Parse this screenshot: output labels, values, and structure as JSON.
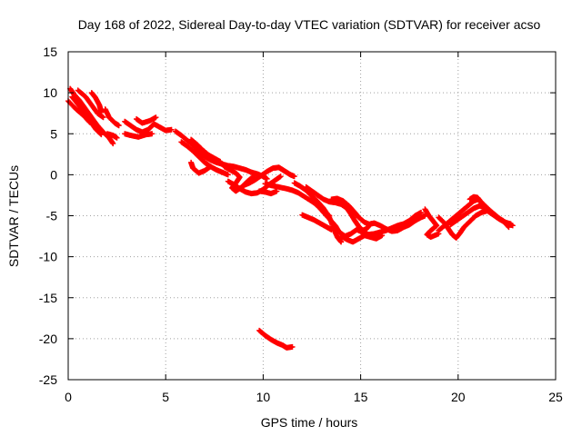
{
  "chart_data": {
    "type": "scatter",
    "title": "Day 168 of 2022, Sidereal Day-to-day VTEC variation (SDTVAR) for receiver acso",
    "xlabel": "GPS time / hours",
    "ylabel": "SDTVAR / TECUs",
    "xlim": [
      0,
      25
    ],
    "ylim": [
      -25,
      15
    ],
    "xticks": [
      "0",
      "5",
      "10",
      "15",
      "20",
      "25"
    ],
    "yticks": [
      "-25",
      "-20",
      "-15",
      "-10",
      "-5",
      "0",
      "5",
      "10",
      "15"
    ],
    "grid": true,
    "marker": "plus",
    "series": [
      {
        "name": "SDTVAR",
        "color": "#ff0000",
        "tracks": [
          [
            [
              0.1,
              10.5
            ],
            [
              0.3,
              9.8
            ],
            [
              0.6,
              9.0
            ],
            [
              0.9,
              8.0
            ],
            [
              1.2,
              7.0
            ],
            [
              1.5,
              6.0
            ],
            [
              1.8,
              5.2
            ],
            [
              2.1,
              4.5
            ],
            [
              2.3,
              3.8
            ]
          ],
          [
            [
              0.2,
              9.5
            ],
            [
              0.5,
              8.6
            ],
            [
              0.8,
              7.6
            ],
            [
              1.1,
              6.6
            ],
            [
              1.4,
              5.6
            ],
            [
              1.7,
              4.9
            ]
          ],
          [
            [
              0.0,
              9.0
            ],
            [
              0.4,
              8.0
            ],
            [
              0.8,
              7.2
            ],
            [
              1.1,
              6.4
            ]
          ],
          [
            [
              0.5,
              10.3
            ],
            [
              0.9,
              9.5
            ],
            [
              1.2,
              8.5
            ],
            [
              1.5,
              7.5
            ],
            [
              1.8,
              7.0
            ]
          ],
          [
            [
              1.2,
              10.0
            ],
            [
              1.4,
              9.4
            ],
            [
              1.6,
              8.5
            ],
            [
              1.7,
              7.6
            ]
          ],
          [
            [
              1.9,
              8.0
            ],
            [
              2.1,
              7.0
            ],
            [
              2.4,
              6.3
            ],
            [
              2.6,
              6.0
            ]
          ],
          [
            [
              2.0,
              5.0
            ],
            [
              2.3,
              4.8
            ],
            [
              2.5,
              4.5
            ]
          ],
          [
            [
              2.9,
              6.5
            ],
            [
              3.2,
              6.0
            ],
            [
              3.5,
              5.5
            ],
            [
              3.8,
              5.2
            ],
            [
              4.1,
              5.5
            ],
            [
              4.4,
              6.2
            ],
            [
              4.7,
              5.8
            ],
            [
              5.0,
              5.4
            ],
            [
              5.3,
              5.5
            ]
          ],
          [
            [
              2.9,
              5.0
            ],
            [
              3.2,
              4.8
            ],
            [
              3.6,
              4.6
            ],
            [
              4.0,
              4.9
            ],
            [
              4.3,
              5.0
            ]
          ],
          [
            [
              3.5,
              6.8
            ],
            [
              3.8,
              6.3
            ],
            [
              4.2,
              6.6
            ],
            [
              4.5,
              7.0
            ]
          ],
          [
            [
              5.5,
              5.3
            ],
            [
              5.8,
              4.8
            ],
            [
              6.1,
              4.2
            ],
            [
              6.4,
              3.6
            ],
            [
              6.7,
              2.8
            ],
            [
              7.0,
              2.2
            ],
            [
              7.3,
              1.8
            ],
            [
              7.6,
              1.5
            ],
            [
              7.9,
              1.3
            ],
            [
              8.2,
              1.1
            ],
            [
              8.5,
              1.0
            ],
            [
              8.8,
              0.8
            ],
            [
              9.1,
              0.6
            ],
            [
              9.4,
              0.3
            ],
            [
              9.7,
              0.1
            ],
            [
              10.0,
              -0.2
            ],
            [
              10.2,
              -0.5
            ]
          ],
          [
            [
              5.8,
              4.0
            ],
            [
              6.1,
              3.5
            ],
            [
              6.4,
              2.9
            ],
            [
              6.7,
              2.2
            ],
            [
              7.0,
              1.5
            ],
            [
              7.3,
              1.0
            ],
            [
              7.6,
              0.6
            ],
            [
              7.9,
              0.3
            ],
            [
              8.2,
              0.0
            ]
          ],
          [
            [
              6.3,
              4.3
            ],
            [
              6.6,
              3.7
            ],
            [
              6.9,
              3.0
            ],
            [
              7.2,
              2.4
            ],
            [
              7.5,
              2.0
            ],
            [
              7.8,
              1.6
            ]
          ],
          [
            [
              6.3,
              1.5
            ],
            [
              6.4,
              0.8
            ],
            [
              6.7,
              0.2
            ],
            [
              7.0,
              0.5
            ],
            [
              7.3,
              1.0
            ]
          ],
          [
            [
              8.0,
              1.0
            ],
            [
              8.3,
              0.6
            ],
            [
              8.6,
              0.2
            ],
            [
              8.8,
              -0.3
            ],
            [
              8.6,
              -1.0
            ],
            [
              8.4,
              -1.6
            ],
            [
              8.6,
              -2.0
            ],
            [
              8.9,
              -1.5
            ],
            [
              9.2,
              -0.8
            ],
            [
              9.5,
              -0.2
            ]
          ],
          [
            [
              8.2,
              -0.8
            ],
            [
              8.5,
              -1.2
            ],
            [
              8.8,
              -1.7
            ],
            [
              9.1,
              -2.1
            ],
            [
              9.4,
              -2.3
            ],
            [
              9.7,
              -2.2
            ],
            [
              10.0,
              -1.8
            ],
            [
              10.3,
              -1.2
            ],
            [
              10.6,
              -0.7
            ],
            [
              10.9,
              -0.2
            ]
          ],
          [
            [
              9.0,
              -1.3
            ],
            [
              9.3,
              -1.0
            ],
            [
              9.6,
              -0.6
            ],
            [
              9.9,
              -0.1
            ],
            [
              10.2,
              0.4
            ],
            [
              10.5,
              0.8
            ],
            [
              10.8,
              0.9
            ],
            [
              11.0,
              0.6
            ],
            [
              11.2,
              0.3
            ],
            [
              11.4,
              0.0
            ],
            [
              11.6,
              -0.2
            ]
          ],
          [
            [
              9.8,
              -2.0
            ],
            [
              10.1,
              -2.1
            ],
            [
              10.4,
              -2.3
            ],
            [
              10.7,
              -2.0
            ]
          ],
          [
            [
              10.1,
              -1.1
            ],
            [
              10.4,
              -1.3
            ],
            [
              10.8,
              -1.5
            ],
            [
              11.2,
              -1.7
            ],
            [
              11.5,
              -1.9
            ],
            [
              11.8,
              -2.2
            ],
            [
              12.2,
              -2.8
            ],
            [
              12.6,
              -3.4
            ],
            [
              13.0,
              -4.2
            ],
            [
              13.4,
              -5.0
            ]
          ],
          [
            [
              11.6,
              -1.0
            ],
            [
              11.9,
              -1.4
            ],
            [
              12.2,
              -1.9
            ],
            [
              12.5,
              -2.6
            ],
            [
              12.8,
              -3.3
            ],
            [
              13.1,
              -4.1
            ],
            [
              13.4,
              -5.2
            ],
            [
              13.6,
              -6.5
            ],
            [
              13.8,
              -7.6
            ],
            [
              14.0,
              -8.2
            ]
          ],
          [
            [
              12.2,
              -1.5
            ],
            [
              12.5,
              -2.0
            ],
            [
              12.8,
              -2.5
            ],
            [
              13.1,
              -3.0
            ],
            [
              13.4,
              -3.3
            ],
            [
              13.7,
              -3.4
            ],
            [
              14.0,
              -3.6
            ],
            [
              14.3,
              -4.1
            ],
            [
              14.5,
              -4.8
            ],
            [
              14.7,
              -5.6
            ],
            [
              14.9,
              -6.3
            ],
            [
              15.1,
              -6.8
            ],
            [
              15.3,
              -6.6
            ],
            [
              15.5,
              -6.0
            ],
            [
              15.7,
              -5.9
            ],
            [
              16.0,
              -6.2
            ],
            [
              16.3,
              -6.6
            ],
            [
              16.6,
              -6.9
            ],
            [
              16.9,
              -6.8
            ],
            [
              17.2,
              -6.4
            ],
            [
              17.5,
              -6.1
            ],
            [
              17.8,
              -5.6
            ],
            [
              18.1,
              -5.2
            ],
            [
              18.3,
              -5.0
            ]
          ],
          [
            [
              12.5,
              -3.2
            ],
            [
              12.8,
              -3.8
            ],
            [
              13.1,
              -4.6
            ],
            [
              13.4,
              -5.4
            ],
            [
              13.7,
              -6.2
            ],
            [
              13.9,
              -7.0
            ],
            [
              14.2,
              -7.5
            ],
            [
              14.5,
              -7.2
            ],
            [
              14.8,
              -6.7
            ],
            [
              15.1,
              -7.0
            ],
            [
              15.4,
              -7.3
            ],
            [
              15.7,
              -7.2
            ],
            [
              16.0,
              -7.0
            ],
            [
              16.3,
              -6.8
            ],
            [
              16.6,
              -6.5
            ],
            [
              16.9,
              -6.2
            ],
            [
              17.2,
              -6.0
            ],
            [
              17.5,
              -5.6
            ],
            [
              17.8,
              -5.0
            ],
            [
              18.1,
              -4.6
            ]
          ],
          [
            [
              12.0,
              -4.9
            ],
            [
              12.3,
              -5.2
            ],
            [
              12.6,
              -5.5
            ],
            [
              12.9,
              -5.9
            ],
            [
              13.2,
              -6.3
            ],
            [
              13.5,
              -6.7
            ]
          ],
          [
            [
              13.5,
              -3.0
            ],
            [
              13.8,
              -2.9
            ],
            [
              14.1,
              -3.2
            ],
            [
              14.4,
              -3.8
            ],
            [
              14.7,
              -4.6
            ],
            [
              14.9,
              -5.2
            ],
            [
              15.2,
              -5.8
            ],
            [
              15.5,
              -6.1
            ]
          ],
          [
            [
              14.0,
              -7.5
            ],
            [
              14.3,
              -7.9
            ],
            [
              14.6,
              -8.2
            ],
            [
              14.9,
              -7.8
            ],
            [
              15.2,
              -7.4
            ],
            [
              15.5,
              -7.6
            ],
            [
              15.8,
              -7.8
            ],
            [
              16.1,
              -7.4
            ]
          ],
          [
            [
              18.3,
              -4.2
            ],
            [
              18.5,
              -5.0
            ],
            [
              18.7,
              -5.6
            ],
            [
              18.9,
              -6.2
            ],
            [
              18.6,
              -6.8
            ],
            [
              18.4,
              -7.3
            ],
            [
              18.6,
              -7.6
            ],
            [
              19.0,
              -7.2
            ]
          ],
          [
            [
              19.0,
              -5.2
            ],
            [
              19.3,
              -5.9
            ],
            [
              19.5,
              -6.6
            ],
            [
              19.7,
              -7.3
            ],
            [
              19.9,
              -7.7
            ],
            [
              20.1,
              -7.1
            ],
            [
              20.3,
              -6.4
            ],
            [
              20.6,
              -5.7
            ],
            [
              20.9,
              -5.0
            ],
            [
              21.2,
              -4.6
            ],
            [
              21.5,
              -4.4
            ],
            [
              21.8,
              -4.9
            ],
            [
              22.1,
              -5.4
            ],
            [
              22.4,
              -5.8
            ],
            [
              22.7,
              -6.0
            ]
          ],
          [
            [
              19.0,
              -6.8
            ],
            [
              19.3,
              -6.2
            ],
            [
              19.6,
              -5.6
            ],
            [
              19.9,
              -5.0
            ],
            [
              20.2,
              -4.4
            ],
            [
              20.5,
              -3.8
            ],
            [
              20.8,
              -3.2
            ],
            [
              21.0,
              -3.0
            ],
            [
              21.3,
              -3.6
            ],
            [
              21.6,
              -4.3
            ],
            [
              21.9,
              -4.9
            ],
            [
              22.2,
              -5.5
            ],
            [
              22.5,
              -5.9
            ],
            [
              22.8,
              -6.2
            ]
          ],
          [
            [
              19.6,
              -6.1
            ],
            [
              19.9,
              -5.6
            ],
            [
              20.2,
              -5.1
            ],
            [
              20.5,
              -4.6
            ],
            [
              20.8,
              -4.1
            ],
            [
              21.1,
              -3.8
            ],
            [
              21.4,
              -4.0
            ],
            [
              21.7,
              -4.6
            ],
            [
              22.0,
              -5.2
            ],
            [
              22.3,
              -5.6
            ],
            [
              22.6,
              -6.4
            ]
          ],
          [
            [
              20.6,
              -3.0
            ],
            [
              20.8,
              -2.7
            ],
            [
              21.0,
              -2.8
            ],
            [
              21.2,
              -3.4
            ]
          ],
          [
            [
              9.8,
              -19.0
            ],
            [
              10.1,
              -19.6
            ],
            [
              10.4,
              -20.1
            ],
            [
              10.7,
              -20.5
            ],
            [
              11.0,
              -20.8
            ],
            [
              11.2,
              -21.1
            ],
            [
              11.5,
              -21.0
            ]
          ]
        ]
      }
    ]
  }
}
